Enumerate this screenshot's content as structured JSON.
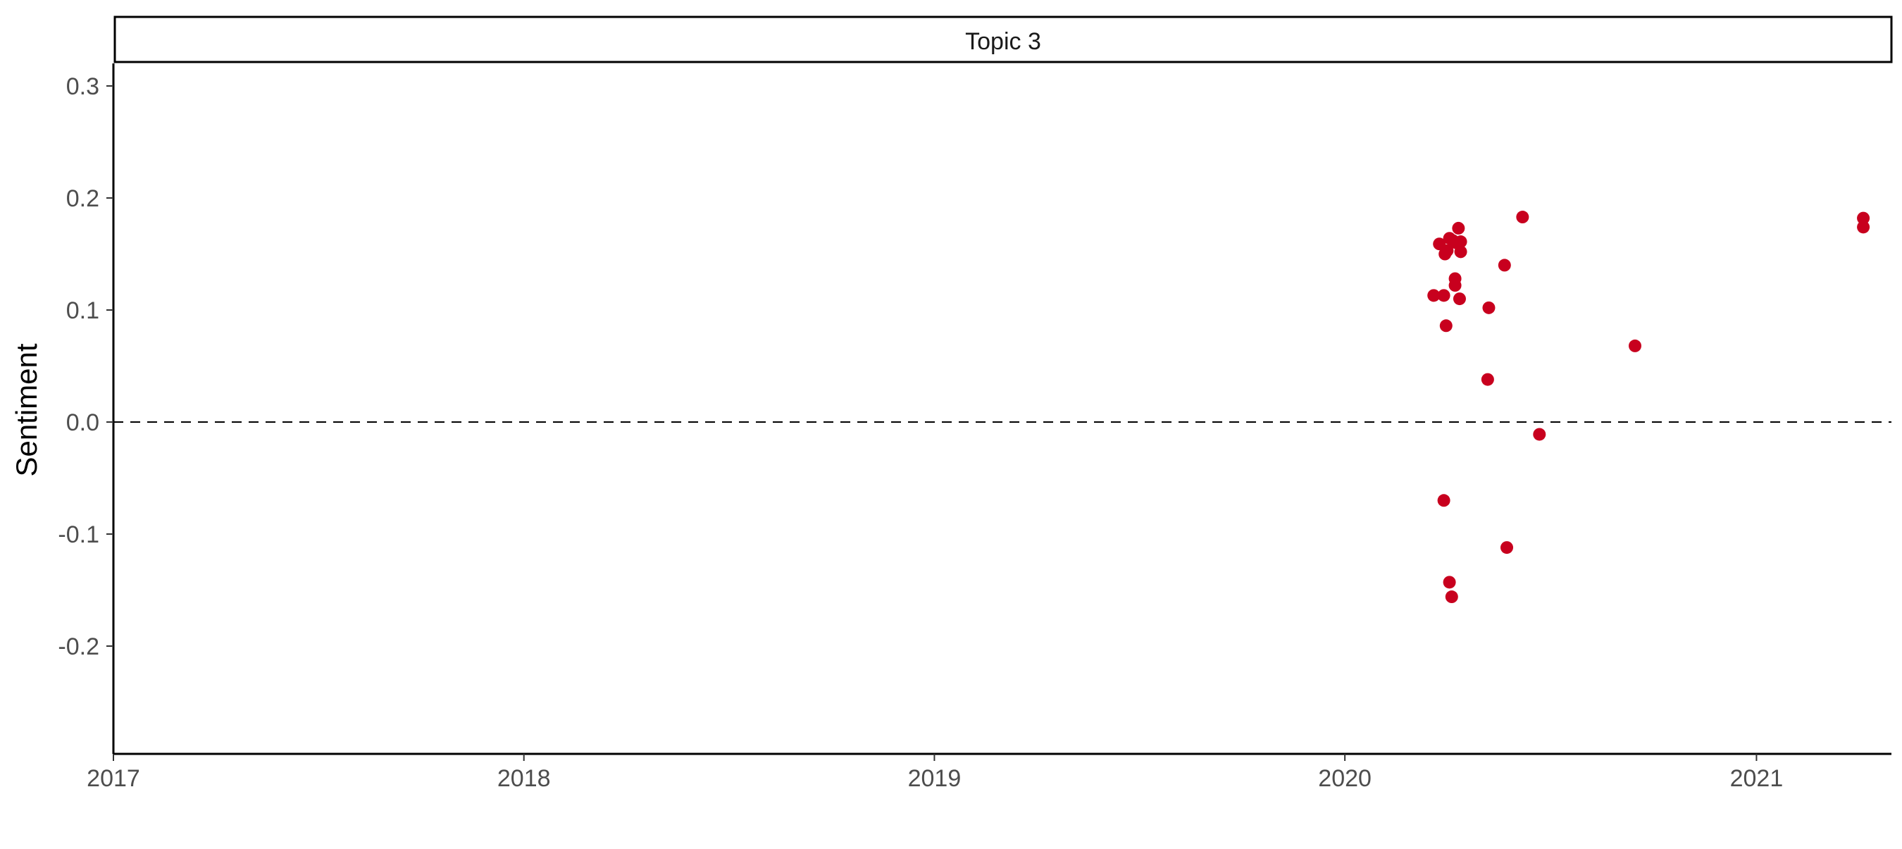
{
  "chart_data": {
    "type": "scatter",
    "panel_title": "Topic 3",
    "ylabel": "Sentiment",
    "xlabel": "",
    "xlim": [
      "2017-01-01",
      "2021-05-01"
    ],
    "ylim": [
      -0.3,
      0.32
    ],
    "x_ticks": [
      "2017-01-01",
      "2018-01-01",
      "2019-01-01",
      "2020-01-01",
      "2021-01-01"
    ],
    "x_tick_labels": [
      "2017",
      "2018",
      "2019",
      "2020",
      "2021"
    ],
    "y_ticks": [
      0.3,
      0.2,
      0.1,
      0.0,
      -0.1,
      -0.2
    ],
    "y_tick_labels": [
      "0.3",
      "0.2",
      "0.1",
      "0.0",
      "-0.1",
      "-0.2"
    ],
    "reference_line_y": 0.0,
    "point_color": "#C8001E",
    "grid": false,
    "points": [
      {
        "x": "2020-03-20",
        "y": 0.113
      },
      {
        "x": "2020-03-25",
        "y": 0.159
      },
      {
        "x": "2020-03-29",
        "y": 0.113
      },
      {
        "x": "2020-03-29",
        "y": -0.07
      },
      {
        "x": "2020-03-30",
        "y": 0.15
      },
      {
        "x": "2020-03-31",
        "y": 0.086
      },
      {
        "x": "2020-04-01",
        "y": 0.153
      },
      {
        "x": "2020-04-03",
        "y": 0.164
      },
      {
        "x": "2020-04-03",
        "y": -0.143
      },
      {
        "x": "2020-04-05",
        "y": -0.156
      },
      {
        "x": "2020-04-06",
        "y": 0.162
      },
      {
        "x": "2020-04-08",
        "y": 0.128
      },
      {
        "x": "2020-04-08",
        "y": 0.122
      },
      {
        "x": "2020-04-09",
        "y": 0.16
      },
      {
        "x": "2020-04-11",
        "y": 0.173
      },
      {
        "x": "2020-04-12",
        "y": 0.11
      },
      {
        "x": "2020-04-13",
        "y": 0.161
      },
      {
        "x": "2020-04-13",
        "y": 0.152
      },
      {
        "x": "2020-05-07",
        "y": 0.038
      },
      {
        "x": "2020-05-08",
        "y": 0.102
      },
      {
        "x": "2020-05-22",
        "y": 0.14
      },
      {
        "x": "2020-05-24",
        "y": -0.112
      },
      {
        "x": "2020-06-07",
        "y": 0.183
      },
      {
        "x": "2020-06-22",
        "y": -0.011
      },
      {
        "x": "2020-09-15",
        "y": 0.068
      },
      {
        "x": "2021-04-06",
        "y": 0.182
      },
      {
        "x": "2021-04-06",
        "y": 0.174
      }
    ]
  }
}
